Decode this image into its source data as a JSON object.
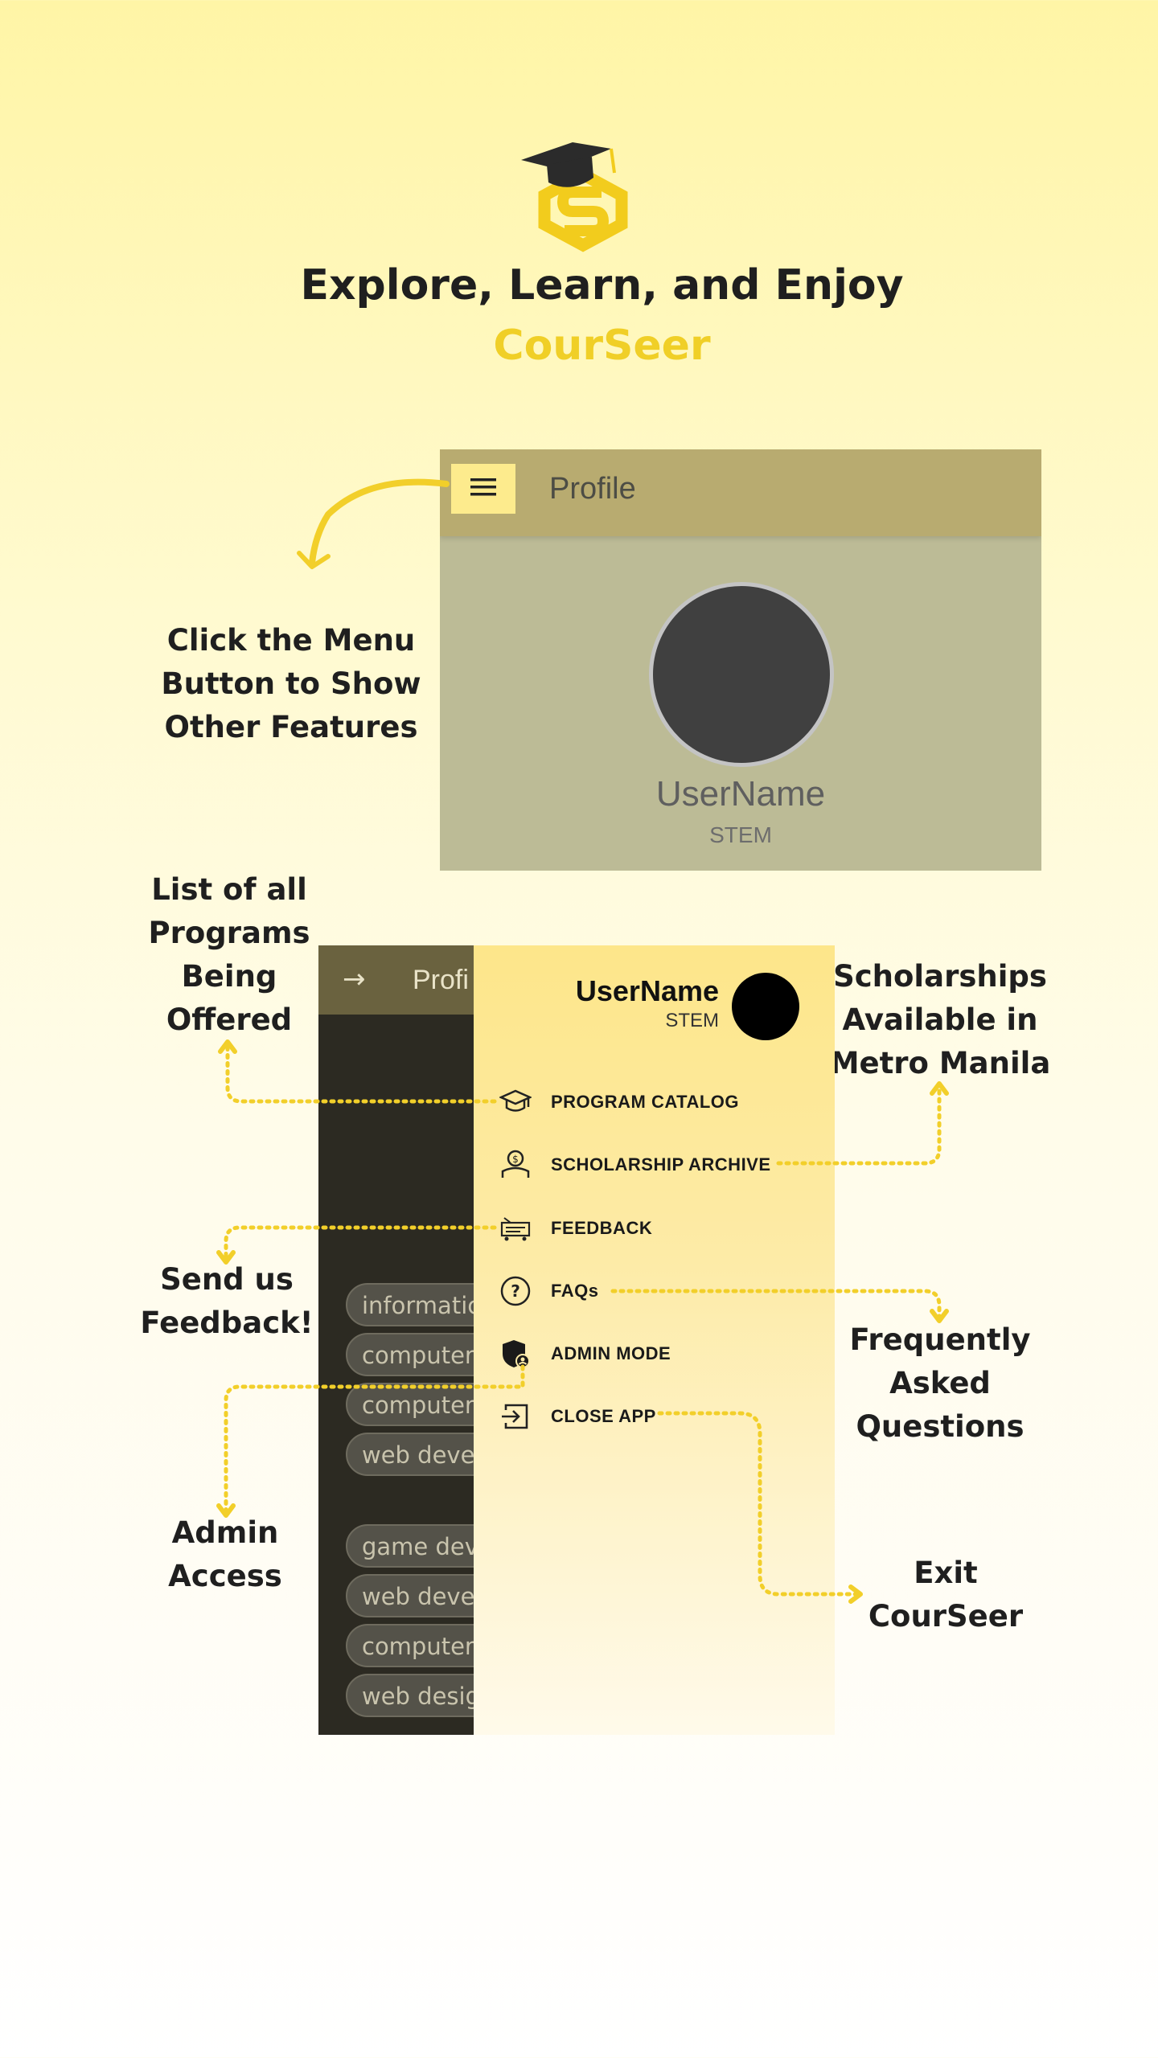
{
  "header": {
    "headline": "Explore, Learn, and Enjoy",
    "brand": "CourSeer"
  },
  "profile_screen": {
    "title": "Profile",
    "username": "UserName",
    "strand": "STEM"
  },
  "annotations": {
    "menu_hint": "Click the Menu Button to Show Other Features",
    "programs": "List of all Programs Being Offered",
    "scholarships": "Scholarships Available in Metro Manila",
    "feedback": "Send us Feedback!",
    "faqs": "Frequently Asked Questions",
    "admin": "Admin Access",
    "exit": "Exit CourSeer"
  },
  "drawer_screen": {
    "background_title": "Profi",
    "username": "UserName",
    "strand": "STEM",
    "chips": [
      "informatic",
      "computer",
      "computer",
      "web develo",
      "game deve",
      "web develo",
      "computer",
      "web desig"
    ],
    "menu": [
      {
        "label": "PROGRAM CATALOG",
        "icon": "graduation-cap-icon"
      },
      {
        "label": "SCHOLARSHIP ARCHIVE",
        "icon": "scholarship-icon"
      },
      {
        "label": "FEEDBACK",
        "icon": "feedback-icon"
      },
      {
        "label": "FAQs",
        "icon": "question-circle-icon"
      },
      {
        "label": "ADMIN MODE",
        "icon": "admin-shield-icon"
      },
      {
        "label": "CLOSE APP",
        "icon": "exit-icon"
      }
    ]
  },
  "colors": {
    "accent": "#f0cf27",
    "dotted_lines": "#f2cf2a",
    "appbar": "#b8ab70",
    "drawer": "#fde68a"
  }
}
